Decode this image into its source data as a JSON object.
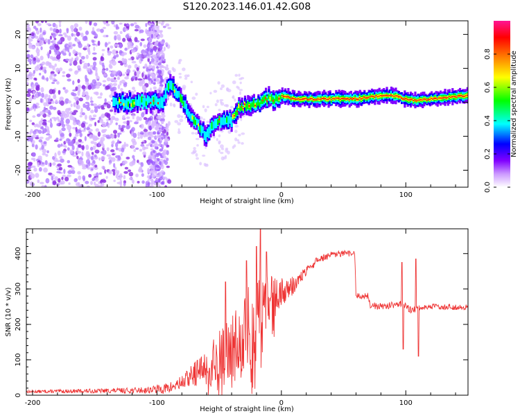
{
  "figure": {
    "title": "S120.2023.146.01.42.G08"
  },
  "chart_data": [
    {
      "type": "heatmap",
      "xlabel": "Height of straight line (km)",
      "ylabel": "Frequency (Hz)",
      "xlim": [
        -205,
        150
      ],
      "ylim": [
        -25,
        24
      ],
      "xticks": [
        -200,
        -100,
        0,
        100
      ],
      "yticks": [
        -20,
        -10,
        0,
        10,
        20
      ],
      "colorbar": {
        "label": "Normalized spectral amplitude",
        "range": [
          0,
          1
        ],
        "ticks": [
          0.0,
          0.2,
          0.4,
          0.6,
          0.8
        ],
        "colors": [
          "#ffffff",
          "#cc99ff",
          "#8000ff",
          "#0000ff",
          "#00ffff",
          "#00ff00",
          "#ffff00",
          "#ff8000",
          "#ff0000",
          "#ff1493"
        ]
      },
      "ridge": {
        "x": [
          -135,
          -120,
          -105,
          -95,
          -90,
          -85,
          -80,
          -75,
          -70,
          -65,
          -60,
          -55,
          -50,
          -45,
          -40,
          -35,
          -30,
          -25,
          -20,
          -15,
          -10,
          -5,
          0,
          10,
          20,
          40,
          60,
          80,
          90,
          100,
          110,
          120,
          150
        ],
        "y": [
          0,
          0,
          0.5,
          0,
          6,
          3,
          1,
          -3,
          -5,
          -8,
          -10,
          -7,
          -5,
          -6,
          -5,
          -2,
          -1,
          -1,
          0,
          0,
          1,
          1,
          2,
          1,
          1,
          1,
          1,
          2,
          2,
          1,
          0.5,
          1,
          2
        ]
      }
    },
    {
      "type": "line",
      "xlabel": "Height of straight line (km)",
      "ylabel": "SNR (10 * v/v)",
      "xlim": [
        -205,
        150
      ],
      "ylim": [
        0,
        470
      ],
      "xticks": [
        -200,
        -100,
        0,
        100
      ],
      "yticks": [
        0,
        100,
        200,
        300,
        400
      ],
      "color": "#ee3333",
      "envelope": {
        "x": [
          -205,
          -150,
          -110,
          -90,
          -80,
          -70,
          -60,
          -50,
          -40,
          -30,
          -20,
          -10,
          0,
          10,
          20,
          30,
          40,
          50,
          59,
          60,
          70,
          71,
          80,
          90,
          95,
          100,
          105,
          110,
          120,
          130,
          150
        ],
        "y": [
          10,
          12,
          14,
          20,
          35,
          60,
          80,
          110,
          140,
          180,
          220,
          260,
          290,
          310,
          350,
          385,
          395,
          400,
          400,
          280,
          280,
          255,
          250,
          255,
          260,
          250,
          240,
          245,
          250,
          250,
          248
        ]
      },
      "noise_level": [
        {
          "x": -205,
          "amp": 4
        },
        {
          "x": -130,
          "amp": 7
        },
        {
          "x": -110,
          "amp": 9
        },
        {
          "x": -80,
          "amp": 20
        },
        {
          "x": -60,
          "amp": 50
        },
        {
          "x": -40,
          "amp": 90
        },
        {
          "x": -25,
          "amp": 120
        },
        {
          "x": -10,
          "amp": 80
        },
        {
          "x": 0,
          "amp": 40
        },
        {
          "x": 20,
          "amp": 12
        },
        {
          "x": 60,
          "amp": 8
        },
        {
          "x": 80,
          "amp": 10
        },
        {
          "x": 150,
          "amp": 8
        }
      ],
      "spikes": [
        {
          "x": -45,
          "y": 320
        },
        {
          "x": -28,
          "y": 380
        },
        {
          "x": -20,
          "y": 420
        },
        {
          "x": -17,
          "y": 470
        },
        {
          "x": -12,
          "y": 405
        },
        {
          "x": 97,
          "y": 375
        },
        {
          "x": 98,
          "y": 130
        },
        {
          "x": 108,
          "y": 385
        },
        {
          "x": 110,
          "y": 110
        }
      ]
    }
  ]
}
